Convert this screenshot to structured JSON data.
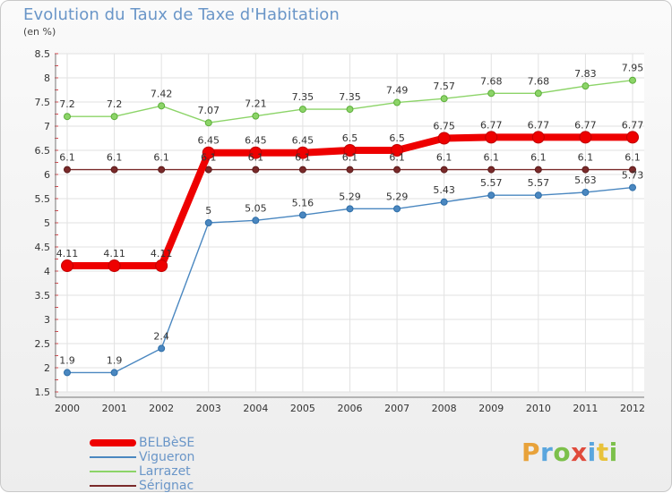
{
  "title": "Evolution du Taux de Taxe d'Habitation",
  "subtitle": "(en %)",
  "logo": {
    "text": "Proxiti",
    "letter_colors": [
      "#e8a23a",
      "#5aa6de",
      "#7cc04a",
      "#e04b3c",
      "#5aa6de",
      "#e8c23a",
      "#7cc04a"
    ]
  },
  "colors": {
    "BELBèSE": "#ee0000",
    "Vigueron": "#4a87c0",
    "Larrazet": "#8cd468",
    "Sérignac": "#7a2a2a"
  },
  "chart_data": {
    "type": "line",
    "title": "Evolution du Taux de Taxe d'Habitation",
    "ylabel": "(en %)",
    "ylim": [
      1.5,
      8.5
    ],
    "yticks": [
      "1.5",
      "2",
      "2.5",
      "3",
      "3.5",
      "4",
      "4.5",
      "5",
      "5.5",
      "6",
      "6.5",
      "7",
      "7.5",
      "8",
      "8.5"
    ],
    "grid": true,
    "legend": "bottom-left",
    "x": [
      "2000",
      "2001",
      "2002",
      "2003",
      "2004",
      "2005",
      "2006",
      "2007",
      "2008",
      "2009",
      "2010",
      "2011",
      "2012"
    ],
    "series": [
      {
        "name": "BELBèSE",
        "values": [
          4.11,
          4.11,
          4.11,
          6.45,
          6.45,
          6.45,
          6.5,
          6.5,
          6.75,
          6.77,
          6.77,
          6.77,
          6.77
        ],
        "labels": [
          "4.11",
          "4.11",
          "4.11",
          "6.45",
          "6.45",
          "6.45",
          "6.5",
          "6.5",
          "6.75",
          "6.77",
          "6.77",
          "6.77",
          "6.77"
        ]
      },
      {
        "name": "Vigueron",
        "values": [
          1.9,
          1.9,
          2.4,
          5,
          5.05,
          5.16,
          5.29,
          5.29,
          5.43,
          5.57,
          5.57,
          5.63,
          5.73
        ],
        "labels": [
          "1.9",
          "1.9",
          "2.4",
          "5",
          "5.05",
          "5.16",
          "5.29",
          "5.29",
          "5.43",
          "5.57",
          "5.57",
          "5.63",
          "5.73"
        ]
      },
      {
        "name": "Larrazet",
        "values": [
          7.2,
          7.2,
          7.42,
          7.07,
          7.21,
          7.35,
          7.35,
          7.49,
          7.57,
          7.68,
          7.68,
          7.83,
          7.95
        ],
        "labels": [
          "7.2",
          "7.2",
          "7.42",
          "7.07",
          "7.21",
          "7.35",
          "7.35",
          "7.49",
          "7.57",
          "7.68",
          "7.68",
          "7.83",
          "7.95"
        ]
      },
      {
        "name": "Sérignac",
        "values": [
          6.1,
          6.1,
          6.1,
          6.1,
          6.1,
          6.1,
          6.1,
          6.1,
          6.1,
          6.1,
          6.1,
          6.1,
          6.1
        ],
        "labels": [
          "6.1",
          "6.1",
          "6.1",
          "6.1",
          "6.1",
          "6.1",
          "6.1",
          "6.1",
          "6.1",
          "6.1",
          "6.1",
          "6.1",
          "6.1"
        ]
      }
    ]
  }
}
